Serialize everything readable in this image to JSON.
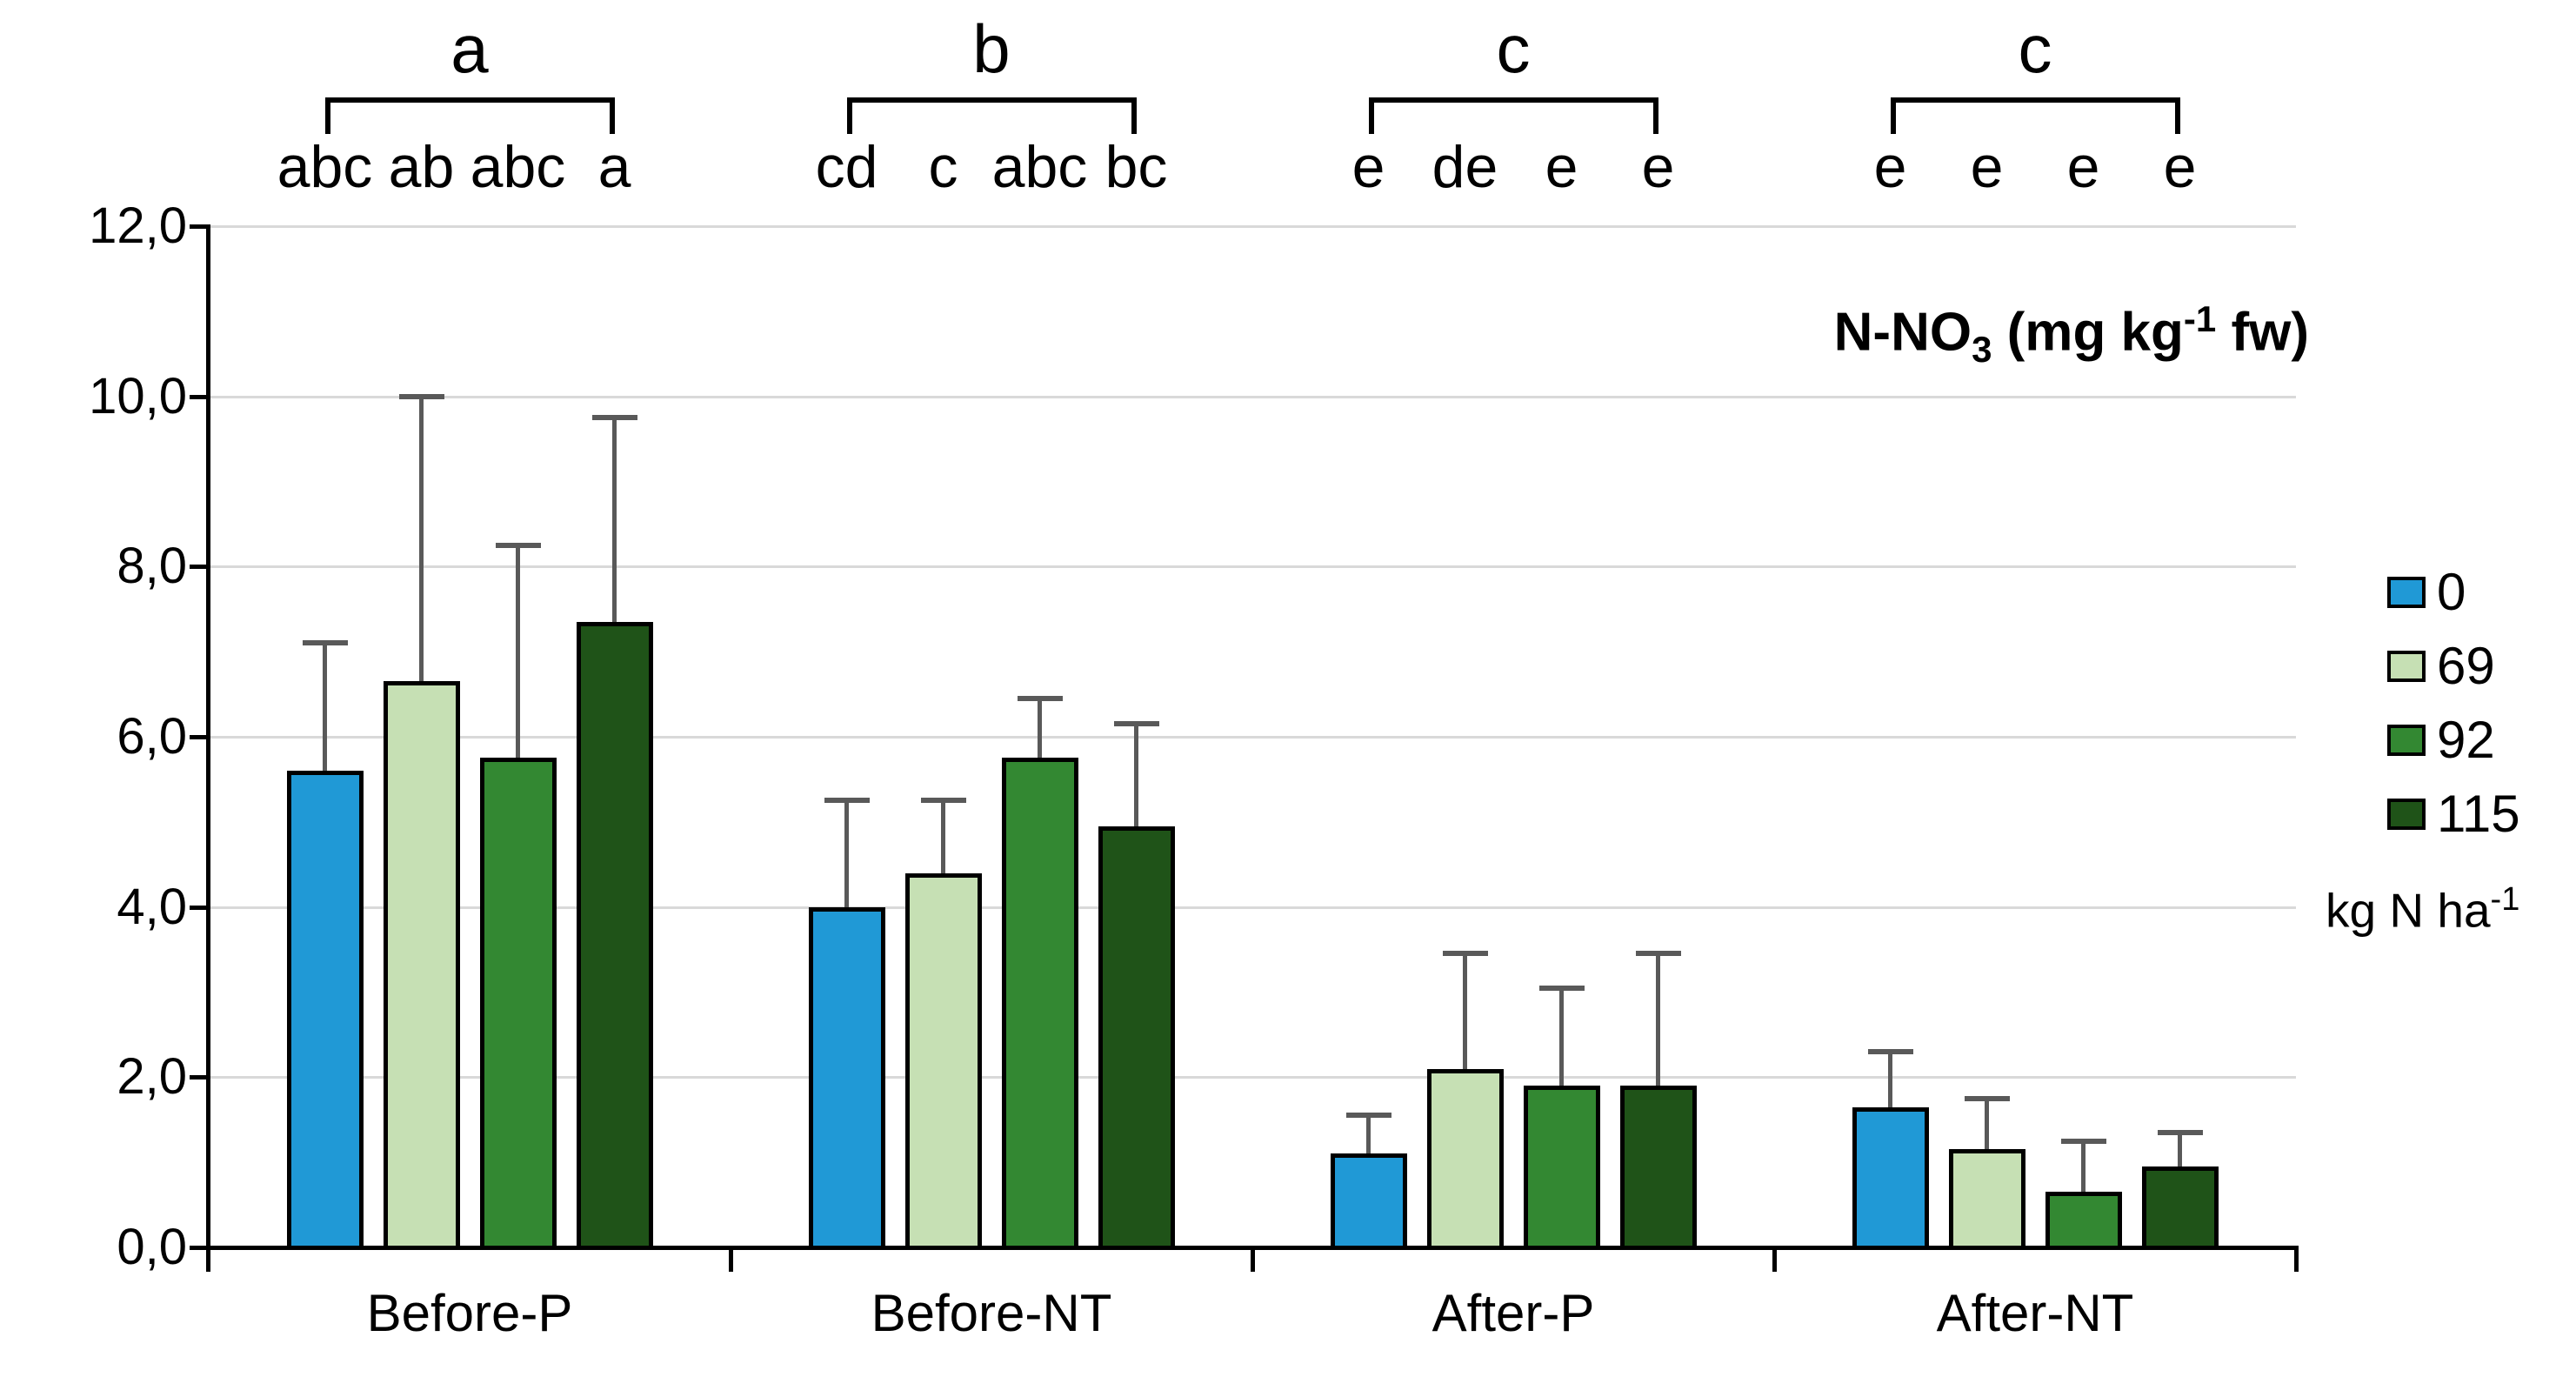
{
  "chart_data": {
    "type": "bar",
    "title": "N-NO3 (mg kg-1 fw)",
    "xlabel": "",
    "ylabel": "N-NO3 (mg kg-1 fw)",
    "categories": [
      "Before-P",
      "Before-NT",
      "After-P",
      "After-NT"
    ],
    "series": [
      {
        "name": "0",
        "color": "#2099D6",
        "values": [
          5.6,
          4.0,
          1.1,
          1.65
        ],
        "errors_up": [
          1.5,
          1.25,
          0.45,
          0.65
        ]
      },
      {
        "name": "69",
        "color": "#C6E0B4",
        "values": [
          6.65,
          4.4,
          2.1,
          1.15
        ],
        "errors_up": [
          3.35,
          0.85,
          1.35,
          0.6
        ]
      },
      {
        "name": "92",
        "color": "#338832",
        "values": [
          5.75,
          5.75,
          1.9,
          0.65
        ],
        "errors_up": [
          2.5,
          0.7,
          1.15,
          0.6
        ]
      },
      {
        "name": "115",
        "color": "#1F5318",
        "values": [
          7.35,
          4.95,
          1.9,
          0.95
        ],
        "errors_up": [
          2.4,
          1.2,
          1.55,
          0.4
        ]
      }
    ],
    "ylim": [
      0,
      12
    ],
    "ytick_labels": [
      "0,0",
      "2,0",
      "4,0",
      "6,0",
      "8,0",
      "10,0",
      "12,0"
    ],
    "ytick_values": [
      0,
      2,
      4,
      6,
      8,
      10,
      12
    ],
    "grid": true,
    "legend_position": "right",
    "group_letters": [
      "a",
      "b",
      "c",
      "c"
    ],
    "bar_letters": [
      [
        "abc",
        "ab",
        "abc",
        "a"
      ],
      [
        "cd",
        "c",
        "abc",
        "bc"
      ],
      [
        "e",
        "de",
        "e",
        "e"
      ],
      [
        "e",
        "e",
        "e",
        "e"
      ]
    ]
  },
  "title_parts": {
    "p1": "N-NO",
    "sub": "3",
    "p2": " (mg kg",
    "sup": "-1",
    "p3": " fw)"
  },
  "legend": {
    "items": [
      {
        "label": "0",
        "color": "#2099D6"
      },
      {
        "label": "69",
        "color": "#C6E0B4"
      },
      {
        "label": "92",
        "color": "#338832"
      },
      {
        "label": "115",
        "color": "#1F5318"
      }
    ],
    "unit_p1": "kg N ha",
    "unit_sup": "-1"
  },
  "colors": {
    "error_bar": "#595959",
    "gridline": "#D9D9D9",
    "axis": "#000000",
    "background": "#FFFFFF"
  }
}
